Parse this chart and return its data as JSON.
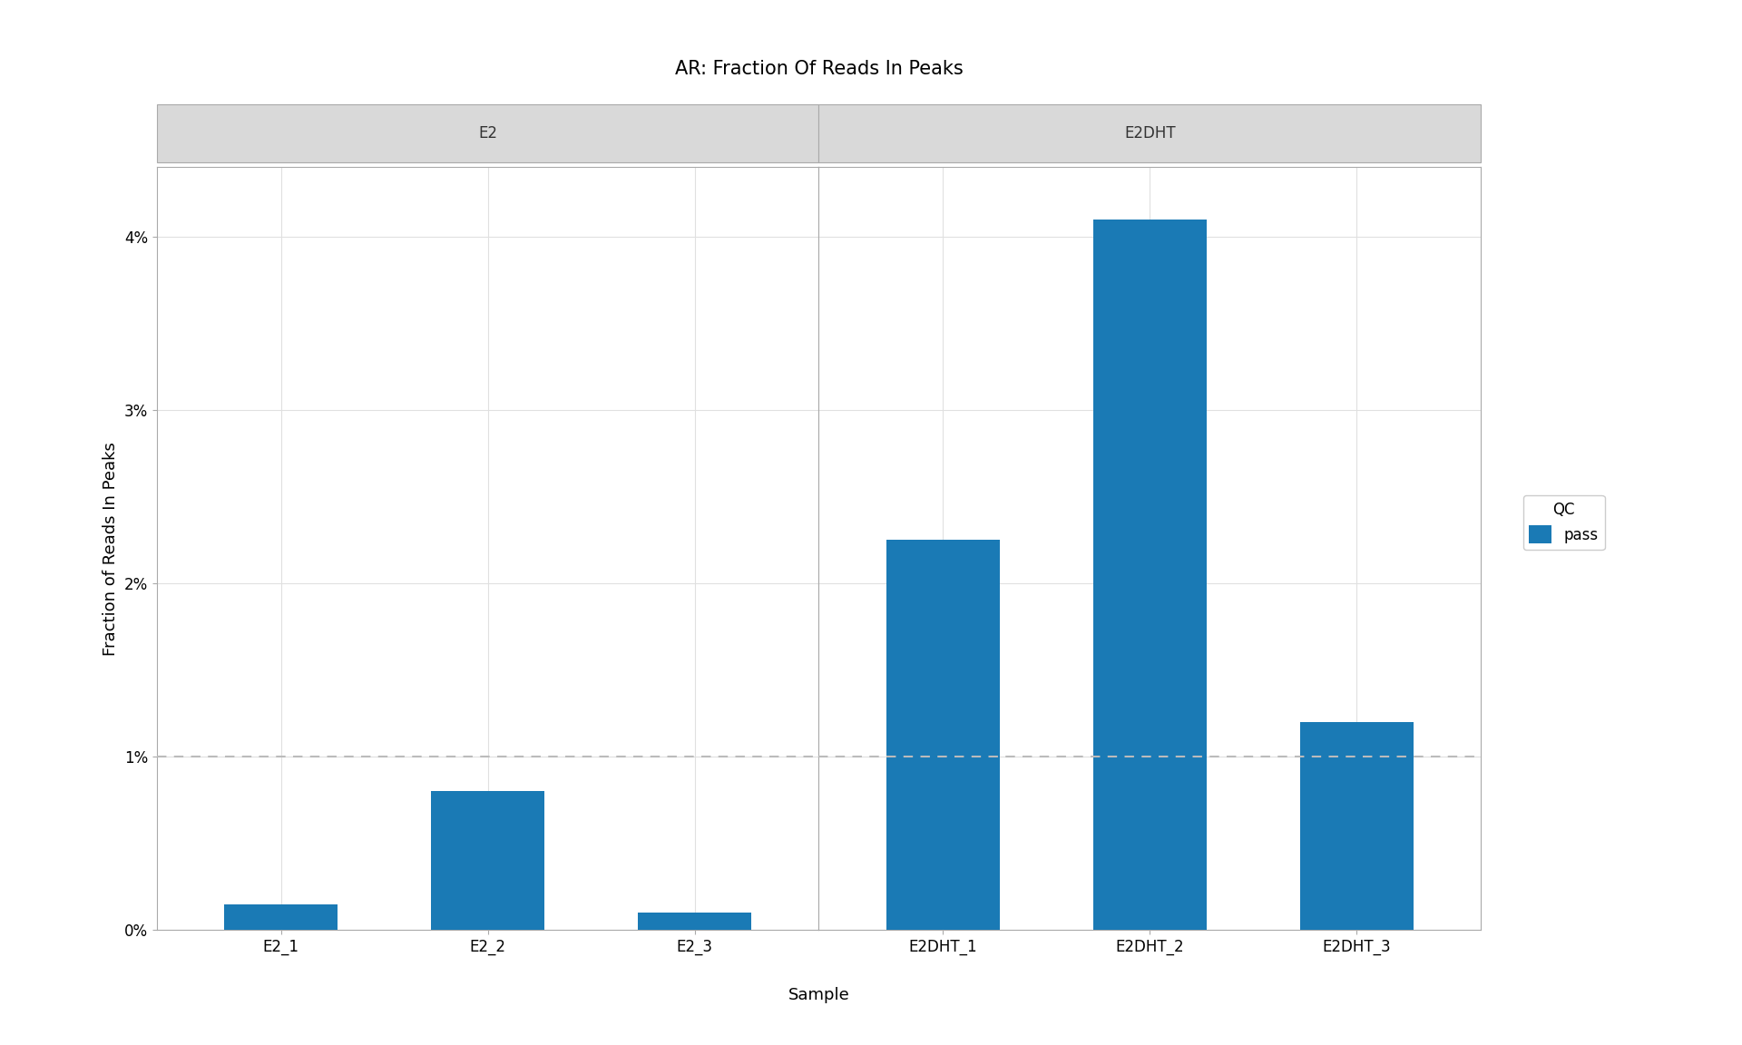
{
  "title": "AR: Fraction Of Reads In Peaks",
  "xlabel": "Sample",
  "ylabel": "Fraction of Reads In Peaks",
  "bar_color": "#1a7ab5",
  "groups": [
    {
      "label": "E2",
      "samples": [
        "E2_1",
        "E2_2",
        "E2_3"
      ],
      "values": [
        0.0015,
        0.008,
        0.001
      ]
    },
    {
      "label": "E2DHT",
      "samples": [
        "E2DHT_1",
        "E2DHT_2",
        "E2DHT_3"
      ],
      "values": [
        0.0225,
        0.041,
        0.012
      ]
    }
  ],
  "threshold": 0.01,
  "threshold_color": "#bbbbbb",
  "threshold_linestyle": "--",
  "ylim": [
    0,
    0.044
  ],
  "yticks": [
    0.0,
    0.01,
    0.02,
    0.03,
    0.04
  ],
  "ytick_labels": [
    "0%",
    "1%",
    "2%",
    "3%",
    "4%"
  ],
  "legend_title": "QC",
  "legend_label": "pass",
  "background_color": "#ffffff",
  "panel_header_color": "#d9d9d9",
  "panel_header_text_color": "#333333",
  "grid_color": "#e0e0e0",
  "spine_color": "#aaaaaa",
  "title_fontsize": 15,
  "axis_label_fontsize": 13,
  "tick_label_fontsize": 12,
  "panel_label_fontsize": 12,
  "legend_fontsize": 12,
  "bar_width": 0.55
}
